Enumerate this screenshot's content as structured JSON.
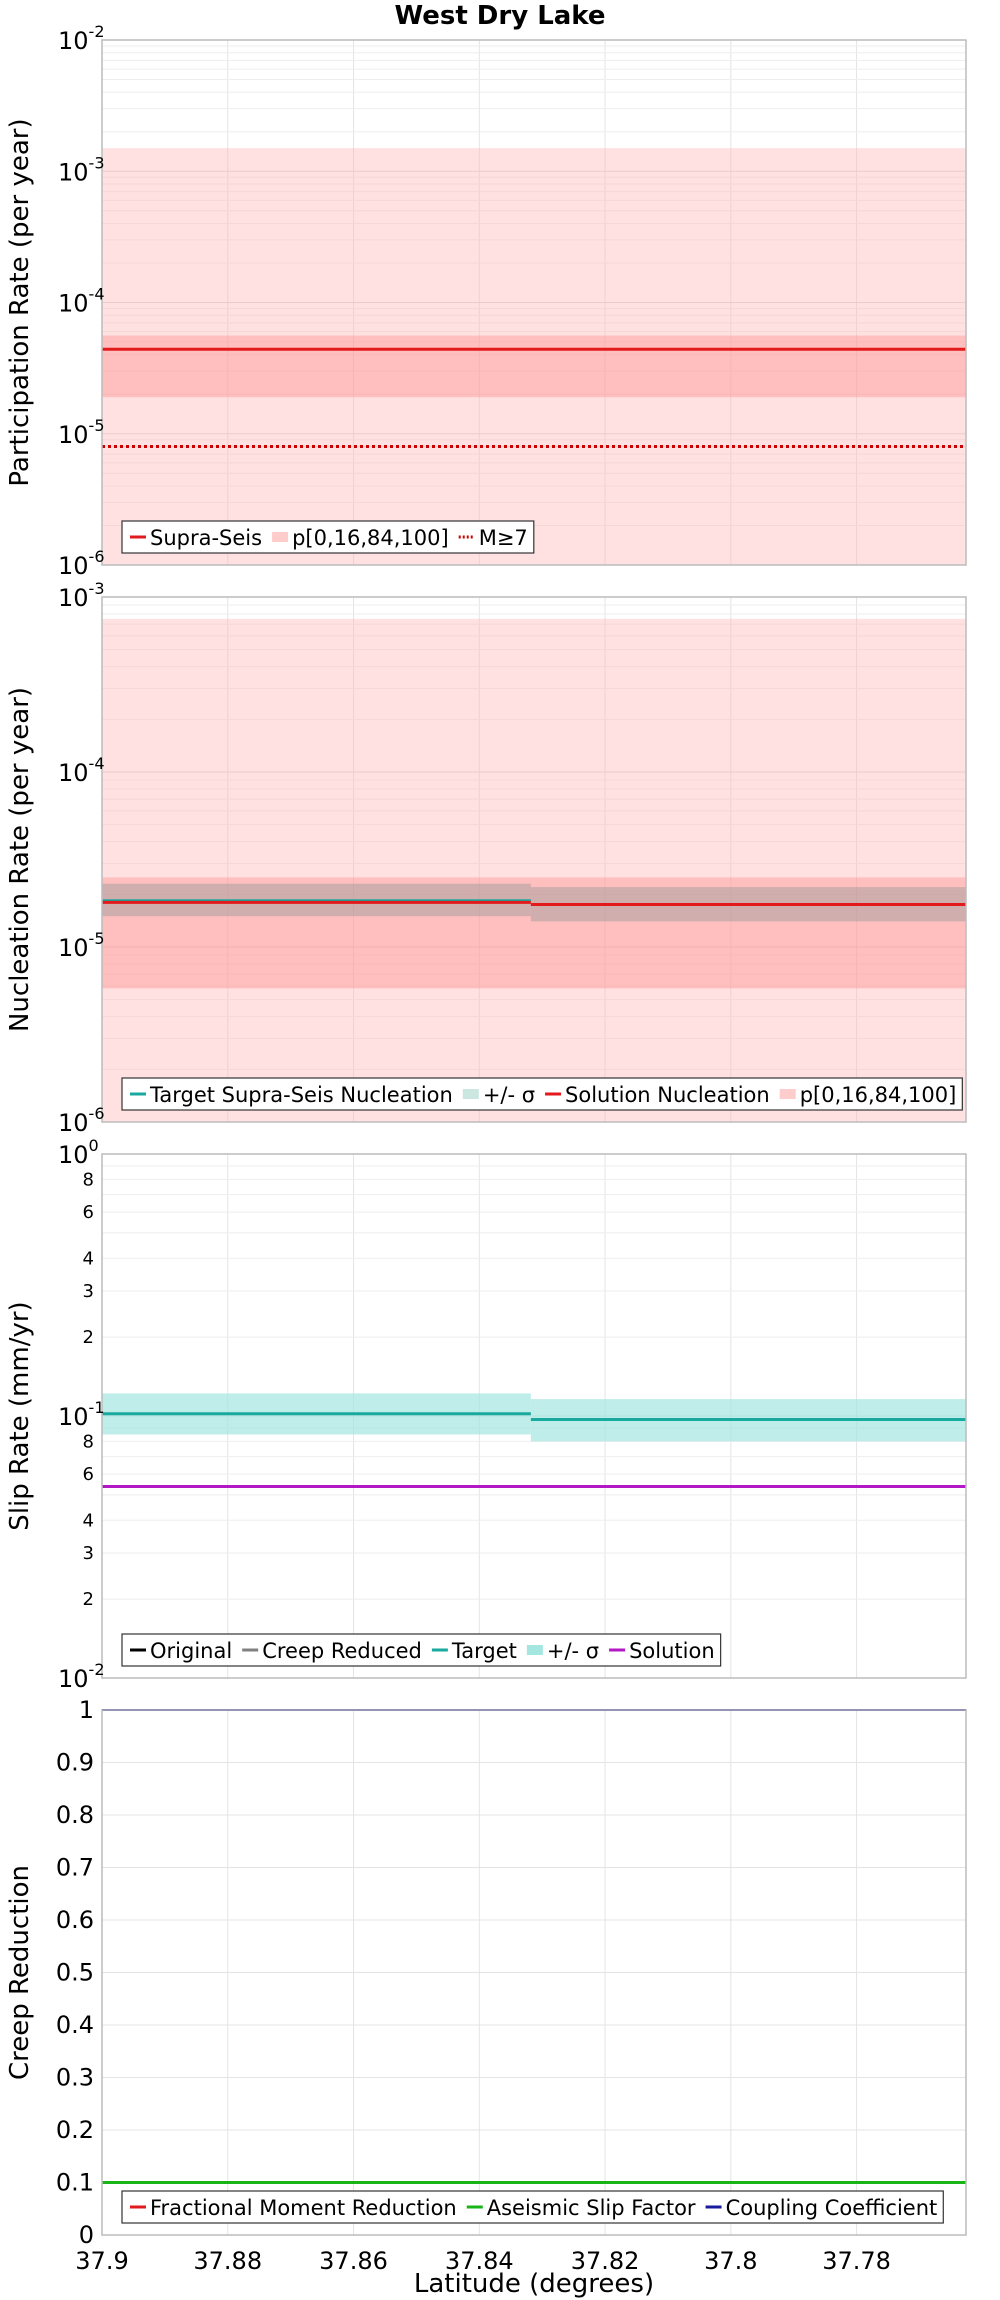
{
  "title": "West Dry Lake",
  "colors": {
    "red": "#e31a1c",
    "pink_band": "#ffb3b3",
    "teal": "#1aa99e",
    "teal_band": "#a4e6e0",
    "gray": "#808080",
    "purple": "#b218c4",
    "green": "#18b418",
    "navy": "#1a1a9e"
  },
  "chart_data": [
    {
      "type": "line",
      "id": "participation",
      "ylabel": "Participation Rate (per year)",
      "yscale": "log",
      "ylim": [
        1e-06,
        0.01
      ],
      "xlim": [
        37.9,
        37.7626
      ],
      "yticks": [
        {
          "base": "10",
          "exp": "-6"
        },
        {
          "base": "10",
          "exp": "-5"
        },
        {
          "base": "10",
          "exp": "-4"
        },
        {
          "base": "10",
          "exp": "-3"
        },
        {
          "base": "10",
          "exp": "-2"
        }
      ],
      "bands": [
        {
          "x": [
            37.9,
            37.7626
          ],
          "y": [
            1e-06,
            0.0015
          ],
          "color": "#ffb3b3",
          "opacity": 0.4
        },
        {
          "x": [
            37.9,
            37.7626
          ],
          "y": [
            1.9e-05,
            5.6e-05
          ],
          "color": "#ff8080",
          "opacity": 0.35
        }
      ],
      "series": [
        {
          "x": [
            37.9,
            37.7626
          ],
          "y": [
            4.4e-05,
            4.4e-05
          ],
          "color": "#e31a1c",
          "style": "solid",
          "width": 3
        },
        {
          "x": [
            37.9,
            37.7626
          ],
          "y": [
            8e-06,
            8e-06
          ],
          "color": "#cc0000",
          "style": "dotted",
          "width": 3
        }
      ],
      "legend": [
        "Supra-Seis",
        "p[0,16,84,100]",
        "M≥7"
      ],
      "legend_placement": "bottom-left"
    },
    {
      "type": "line",
      "id": "nucleation",
      "ylabel": "Nucleation Rate (per year)",
      "yscale": "log",
      "ylim": [
        1e-06,
        0.001
      ],
      "xlim": [
        37.9,
        37.7626
      ],
      "yticks": [
        {
          "base": "10",
          "exp": "-6"
        },
        {
          "base": "10",
          "exp": "-5"
        },
        {
          "base": "10",
          "exp": "-4"
        },
        {
          "base": "10",
          "exp": "-3"
        }
      ],
      "bands": [
        {
          "x": [
            37.9,
            37.7626
          ],
          "y": [
            1e-06,
            0.00075
          ],
          "color": "#ffb3b3",
          "opacity": 0.4
        },
        {
          "x": [
            37.9,
            37.7626
          ],
          "y": [
            5.8e-06,
            2.5e-05
          ],
          "color": "#ff8080",
          "opacity": 0.35
        },
        {
          "x": [
            37.9,
            37.8318
          ],
          "y": [
            1.5e-05,
            2.3e-05
          ],
          "color": "#999999",
          "opacity": 0.45
        },
        {
          "x": [
            37.8318,
            37.7626
          ],
          "y": [
            1.4e-05,
            2.2e-05
          ],
          "color": "#999999",
          "opacity": 0.45
        }
      ],
      "series": [
        {
          "x": [
            37.9,
            37.8318
          ],
          "y": [
            1.85e-05,
            1.85e-05
          ],
          "color": "#1aa99e",
          "style": "solid",
          "width": 2
        },
        {
          "x": [
            37.9,
            37.8318
          ],
          "y": [
            1.8e-05,
            1.8e-05
          ],
          "color": "#e31a1c",
          "style": "solid",
          "width": 3
        },
        {
          "x": [
            37.8318,
            37.7626
          ],
          "y": [
            1.75e-05,
            1.75e-05
          ],
          "color": "#e31a1c",
          "style": "solid",
          "width": 3
        }
      ],
      "legend": [
        "Target Supra-Seis Nucleation",
        "+/- σ",
        "Solution Nucleation",
        "p[0,16,84,100]"
      ],
      "legend_placement": "bottom-left"
    },
    {
      "type": "line",
      "id": "slip",
      "ylabel": "Slip Rate (mm/yr)",
      "yscale": "log",
      "ylim": [
        0.01,
        1
      ],
      "xlim": [
        37.9,
        37.7626
      ],
      "yticks": [
        {
          "base": "10",
          "exp": "-2"
        },
        {
          "base": "10",
          "exp": "-1"
        },
        {
          "base": "10",
          "exp": "0"
        }
      ],
      "yminor": [
        {
          "value": 0.02,
          "label": "2"
        },
        {
          "value": 0.03,
          "label": "3"
        },
        {
          "value": 0.04,
          "label": "4"
        },
        {
          "value": 0.06,
          "label": "6"
        },
        {
          "value": 0.08,
          "label": "8"
        },
        {
          "value": 0.2,
          "label": "2"
        },
        {
          "value": 0.3,
          "label": "3"
        },
        {
          "value": 0.4,
          "label": "4"
        },
        {
          "value": 0.6,
          "label": "6"
        },
        {
          "value": 0.8,
          "label": "8"
        }
      ],
      "bands": [
        {
          "x": [
            37.9,
            37.8318
          ],
          "y": [
            0.085,
            0.122
          ],
          "color": "#a4e6e0",
          "opacity": 0.7
        },
        {
          "x": [
            37.8318,
            37.7626
          ],
          "y": [
            0.08,
            0.116
          ],
          "color": "#a4e6e0",
          "opacity": 0.7
        }
      ],
      "series": [
        {
          "x": [
            37.9,
            37.8318
          ],
          "y": [
            0.102,
            0.102
          ],
          "color": "#1aa99e",
          "style": "solid",
          "width": 3
        },
        {
          "x": [
            37.8318,
            37.7626
          ],
          "y": [
            0.097,
            0.097
          ],
          "color": "#1aa99e",
          "style": "solid",
          "width": 3
        },
        {
          "x": [
            37.9,
            37.7626
          ],
          "y": [
            0.0538,
            0.0538
          ],
          "color": "#b218c4",
          "style": "solid",
          "width": 3
        }
      ],
      "legend": [
        "Original",
        "Creep Reduced",
        "Target",
        "+/- σ",
        "Solution"
      ],
      "legend_placement": "bottom-left"
    },
    {
      "type": "line",
      "id": "creep",
      "ylabel": "Creep Reduction",
      "xlabel": "Latitude (degrees)",
      "yscale": "linear",
      "ylim": [
        0,
        1
      ],
      "xlim": [
        37.9,
        37.7626
      ],
      "yticks": [
        {
          "value": 0,
          "label": "0"
        },
        {
          "value": 0.1,
          "label": "0.1"
        },
        {
          "value": 0.2,
          "label": "0.2"
        },
        {
          "value": 0.3,
          "label": "0.3"
        },
        {
          "value": 0.4,
          "label": "0.4"
        },
        {
          "value": 0.5,
          "label": "0.5"
        },
        {
          "value": 0.6,
          "label": "0.6"
        },
        {
          "value": 0.7,
          "label": "0.7"
        },
        {
          "value": 0.8,
          "label": "0.8"
        },
        {
          "value": 0.9,
          "label": "0.9"
        },
        {
          "value": 1,
          "label": "1"
        }
      ],
      "xticks": [
        "37.9",
        "37.88",
        "37.86",
        "37.84",
        "37.82",
        "37.8",
        "37.78"
      ],
      "xtick_values": [
        37.9,
        37.88,
        37.86,
        37.84,
        37.82,
        37.8,
        37.78
      ],
      "bands": [],
      "series": [
        {
          "x": [
            37.9,
            37.7626
          ],
          "y": [
            0.1,
            0.1
          ],
          "color": "#18b418",
          "style": "solid",
          "width": 3
        },
        {
          "x": [
            37.9,
            37.7626
          ],
          "y": [
            1,
            1
          ],
          "color": "#1a1a9e",
          "style": "solid",
          "width": 2
        }
      ],
      "legend": [
        "Fractional Moment Reduction",
        "Aseismic Slip Factor",
        "Coupling Coefficient"
      ],
      "legend_placement": "bottom-left"
    }
  ],
  "legend_swatches": {
    "participation": [
      "#e31a1c",
      "#ffcccc",
      "#cc0000"
    ],
    "nucleation": [
      "#1aa99e",
      "#cce6e0",
      "#e31a1c",
      "#ffcccc"
    ],
    "slip": [
      "#000000",
      "#808080",
      "#1aa99e",
      "#a4e6e0",
      "#b218c4"
    ],
    "creep": [
      "#e31a1c",
      "#18b418",
      "#1a1a9e"
    ]
  }
}
